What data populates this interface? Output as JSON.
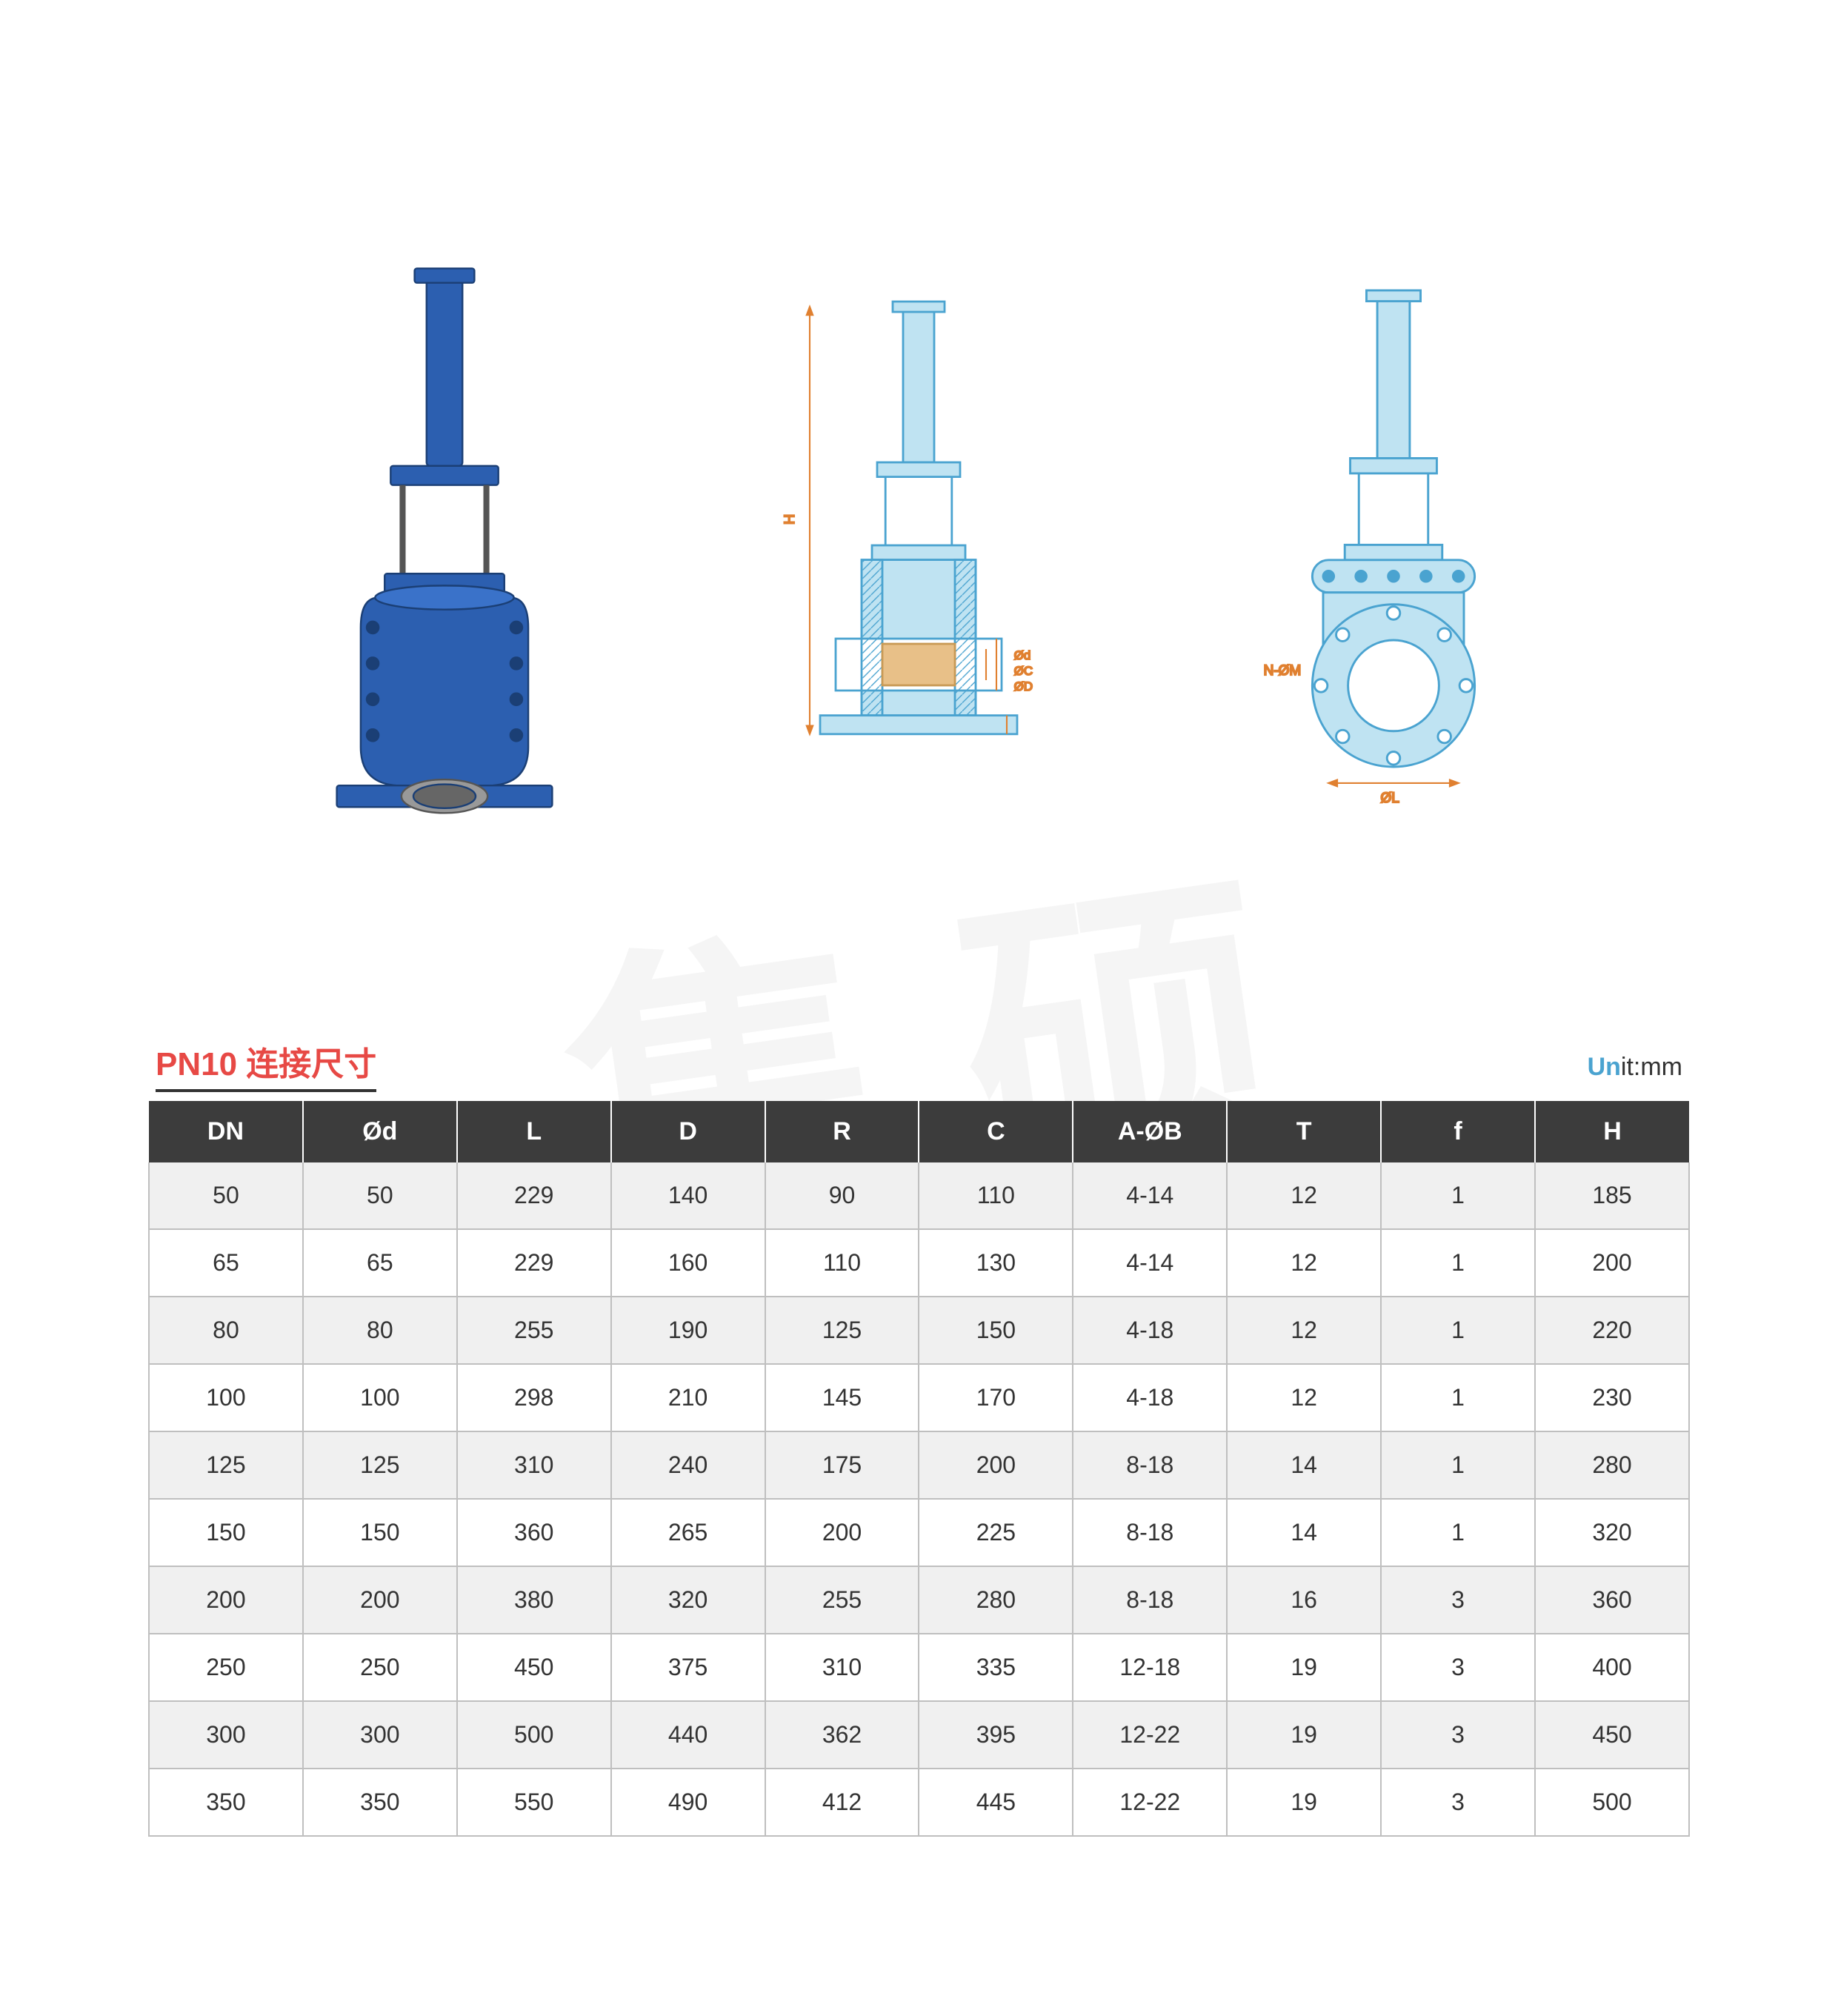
{
  "diagrams": {
    "render_color": "#2c5fb0",
    "tech_line_color": "#4aa3d0",
    "dim_line_color": "#e08030",
    "dim_labels": [
      "H",
      "Ød",
      "ØC",
      "ØD",
      "N-ØM",
      "ØL"
    ]
  },
  "table": {
    "title": "PN10 连接尺寸",
    "unit_prefix": "Un",
    "unit_suffix": "it:mm",
    "columns": [
      "DN",
      "Ød",
      "L",
      "D",
      "R",
      "C",
      "A-ØB",
      "T",
      "f",
      "H"
    ],
    "rows": [
      [
        "50",
        "50",
        "229",
        "140",
        "90",
        "110",
        "4-14",
        "12",
        "1",
        "185"
      ],
      [
        "65",
        "65",
        "229",
        "160",
        "110",
        "130",
        "4-14",
        "12",
        "1",
        "200"
      ],
      [
        "80",
        "80",
        "255",
        "190",
        "125",
        "150",
        "4-18",
        "12",
        "1",
        "220"
      ],
      [
        "100",
        "100",
        "298",
        "210",
        "145",
        "170",
        "4-18",
        "12",
        "1",
        "230"
      ],
      [
        "125",
        "125",
        "310",
        "240",
        "175",
        "200",
        "8-18",
        "14",
        "1",
        "280"
      ],
      [
        "150",
        "150",
        "360",
        "265",
        "200",
        "225",
        "8-18",
        "14",
        "1",
        "320"
      ],
      [
        "200",
        "200",
        "380",
        "320",
        "255",
        "280",
        "8-18",
        "16",
        "3",
        "360"
      ],
      [
        "250",
        "250",
        "450",
        "375",
        "310",
        "335",
        "12-18",
        "19",
        "3",
        "400"
      ],
      [
        "300",
        "300",
        "500",
        "440",
        "362",
        "395",
        "12-22",
        "19",
        "3",
        "450"
      ],
      [
        "350",
        "350",
        "550",
        "490",
        "412",
        "445",
        "12-22",
        "19",
        "3",
        "500"
      ]
    ],
    "header_bg": "#3c3c3c",
    "header_fg": "#ffffff",
    "row_odd_bg": "#f0f0f0",
    "row_even_bg": "#ffffff",
    "border_color": "#bfbfbf",
    "title_color": "#e74945",
    "cell_fontsize": 32,
    "header_fontsize": 34,
    "title_fontsize": 44
  },
  "watermark_text": "集 硕"
}
